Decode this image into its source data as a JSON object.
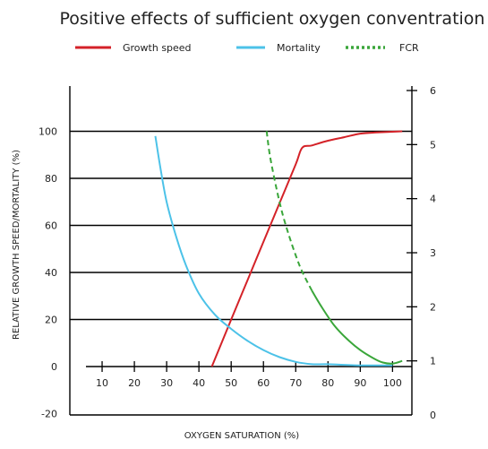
{
  "chart_data": {
    "type": "line",
    "title": "Positive effects of sufficient oxygen conventration",
    "xlabel": "OXYGEN SATURATION (%)",
    "ylabel": "RELATIVE GROWTH SPEED/MORTALITY (%)",
    "xlim": [
      0,
      106
    ],
    "ylim": [
      -20,
      120
    ],
    "y2lim": [
      0,
      6
    ],
    "x_ticks": [
      10,
      20,
      30,
      40,
      50,
      60,
      70,
      80,
      90,
      100
    ],
    "y_ticks": [
      -20,
      0,
      20,
      40,
      60,
      80,
      100
    ],
    "y2_ticks": [
      0,
      1,
      2,
      3,
      4,
      5,
      6
    ],
    "grid": "horizontal",
    "legend_position": "top",
    "colors": {
      "growth": "#d42228",
      "mortality": "#4cc2e8",
      "fcr": "#3aa63a",
      "grid": "#000000"
    },
    "series": [
      {
        "name": "Growth speed",
        "axis": "left",
        "style": "solid",
        "x": [
          44,
          50,
          55,
          60,
          65,
          70,
          72,
          75,
          80,
          85,
          90,
          95,
          100,
          103
        ],
        "y": [
          0,
          20,
          36.5,
          53,
          69.5,
          86,
          93,
          94,
          96,
          97.5,
          99,
          99.5,
          99.8,
          100
        ]
      },
      {
        "name": "Mortality",
        "axis": "left",
        "style": "solid",
        "x": [
          26.5,
          28,
          30,
          33,
          36,
          40,
          45,
          50,
          55,
          60,
          65,
          70,
          75,
          80,
          90,
          100
        ],
        "y": [
          98,
          85,
          70,
          55,
          43,
          31,
          22,
          16,
          11,
          7,
          4,
          2,
          1,
          1,
          0.5,
          0.5
        ]
      },
      {
        "name": "FCR",
        "axis": "right",
        "style": "dashed-then-solid",
        "x": [
          61,
          62,
          64,
          66,
          68,
          70,
          72,
          75,
          78,
          82,
          86,
          90,
          94,
          97,
          100,
          103
        ],
        "y": [
          5.25,
          4.8,
          4.2,
          3.7,
          3.3,
          2.95,
          2.65,
          2.3,
          2.0,
          1.65,
          1.4,
          1.2,
          1.05,
          0.97,
          0.95,
          1.0
        ],
        "dashed_until_x": 75
      }
    ]
  }
}
